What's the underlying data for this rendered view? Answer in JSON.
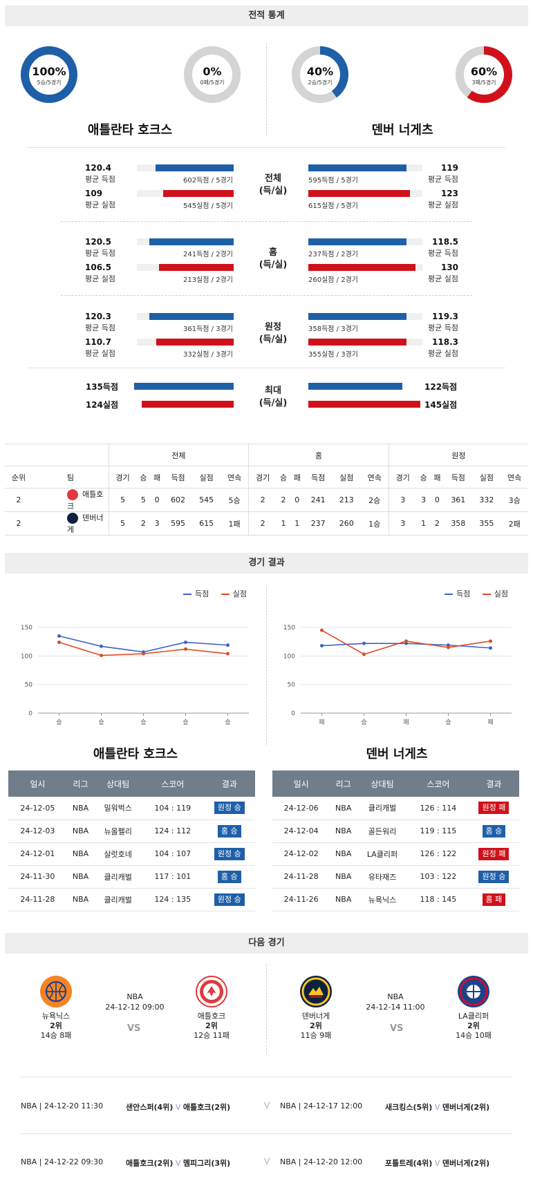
{
  "sections": {
    "stats": "전적 통계",
    "results": "경기 결과",
    "next": "다음 경기"
  },
  "donuts": [
    {
      "pct": "100%",
      "sub": "5승/5경기",
      "fill": 1.0,
      "color": "#1f5fa8"
    },
    {
      "pct": "0%",
      "sub": "0패/5경기",
      "fill": 0.0,
      "color": "#d0111b"
    },
    {
      "pct": "40%",
      "sub": "2승/5경기",
      "fill": 0.4,
      "color": "#1f5fa8"
    },
    {
      "pct": "60%",
      "sub": "3패/5경기",
      "fill": 0.6,
      "color": "#d0111b"
    }
  ],
  "teams": {
    "home": "애틀란타 호크스",
    "away": "덴버 너게츠"
  },
  "compare": [
    {
      "mid": [
        "전체",
        "(득/실)"
      ],
      "left": [
        {
          "num": "120.4",
          "label": "평균 득점",
          "cap": "602득점 / 5경기",
          "ratio": 0.81,
          "color": "blue"
        },
        {
          "num": "109",
          "label": "평균 실점",
          "cap": "545실점 / 5경기",
          "ratio": 0.73,
          "color": "red"
        }
      ],
      "right": [
        {
          "num": "119",
          "label": "평균 득점",
          "cap": "595득점 / 5경기",
          "ratio": 0.86,
          "color": "blue"
        },
        {
          "num": "123",
          "label": "평균 실점",
          "cap": "615실점 / 5경기",
          "ratio": 0.89,
          "color": "red"
        }
      ]
    },
    {
      "mid": [
        "홈",
        "(득/실)"
      ],
      "left": [
        {
          "num": "120.5",
          "label": "평균 득점",
          "cap": "241득점 / 2경기",
          "ratio": 0.87,
          "color": "blue"
        },
        {
          "num": "106.5",
          "label": "평균 실점",
          "cap": "213실점 / 2경기",
          "ratio": 0.77,
          "color": "red"
        }
      ],
      "right": [
        {
          "num": "118.5",
          "label": "평균 득점",
          "cap": "237득점 / 2경기",
          "ratio": 0.86,
          "color": "blue"
        },
        {
          "num": "130",
          "label": "평균 실점",
          "cap": "260실점 / 2경기",
          "ratio": 0.94,
          "color": "red"
        }
      ]
    },
    {
      "mid": [
        "원정",
        "(득/실)"
      ],
      "left": [
        {
          "num": "120.3",
          "label": "평균 득점",
          "cap": "361득점 / 3경기",
          "ratio": 0.87,
          "color": "blue"
        },
        {
          "num": "110.7",
          "label": "평균 실점",
          "cap": "332실점 / 3경기",
          "ratio": 0.8,
          "color": "red"
        }
      ],
      "right": [
        {
          "num": "119.3",
          "label": "평균 득점",
          "cap": "358득점 / 3경기",
          "ratio": 0.86,
          "color": "blue"
        },
        {
          "num": "118.3",
          "label": "평균 실점",
          "cap": "355실점 / 3경기",
          "ratio": 0.86,
          "color": "red"
        }
      ]
    }
  ],
  "maxrow": {
    "mid": [
      "최대",
      "(득/실)"
    ],
    "left": [
      {
        "num": "135득점",
        "ratio": 0.93,
        "color": "blue"
      },
      {
        "num": "124실점",
        "ratio": 0.86,
        "color": "red"
      }
    ],
    "right": [
      {
        "num": "122득점",
        "ratio": 0.84,
        "color": "blue"
      },
      {
        "num": "145실점",
        "ratio": 1.0,
        "color": "red"
      }
    ]
  },
  "standings": {
    "groups": [
      "전체",
      "홈",
      "원정"
    ],
    "cols_fixed": [
      "순위",
      "팀"
    ],
    "cols": [
      "경기",
      "승",
      "패",
      "득점",
      "실점",
      "연속"
    ],
    "rows": [
      {
        "rank": "2",
        "team": "애틀호크",
        "logo_color": "#e03a3e",
        "total": [
          "5",
          "5",
          "0",
          "602",
          "545",
          "5승"
        ],
        "home": [
          "2",
          "2",
          "0",
          "241",
          "213",
          "2승"
        ],
        "away": [
          "3",
          "3",
          "0",
          "361",
          "332",
          "3승"
        ]
      },
      {
        "rank": "2",
        "team": "덴버너게",
        "logo_color": "#0e2240",
        "total": [
          "5",
          "2",
          "3",
          "595",
          "615",
          "1패"
        ],
        "home": [
          "2",
          "1",
          "1",
          "237",
          "260",
          "1승"
        ],
        "away": [
          "3",
          "1",
          "2",
          "358",
          "355",
          "2패"
        ]
      }
    ]
  },
  "legend": {
    "scored": "득점",
    "allowed": "실점"
  },
  "chart_data": [
    {
      "type": "line",
      "categories": [
        "승",
        "승",
        "승",
        "승",
        "승"
      ],
      "series": [
        {
          "name": "득점",
          "values": [
            135,
            117,
            107,
            124,
            119
          ],
          "color": "#3a62c9"
        },
        {
          "name": "실점",
          "values": [
            124,
            101,
            104,
            112,
            104
          ],
          "color": "#dd4b25"
        }
      ],
      "ylim": [
        0,
        150
      ],
      "yticks": [
        0,
        50,
        100,
        150
      ],
      "legend": "top-right",
      "grid": true
    },
    {
      "type": "line",
      "categories": [
        "패",
        "승",
        "패",
        "승",
        "패"
      ],
      "series": [
        {
          "name": "득점",
          "values": [
            118,
            122,
            122,
            119,
            114
          ],
          "color": "#3a62c9"
        },
        {
          "name": "실점",
          "values": [
            145,
            103,
            126,
            115,
            126
          ],
          "color": "#dd4b25"
        }
      ],
      "ylim": [
        0,
        150
      ],
      "yticks": [
        0,
        50,
        100,
        150
      ],
      "legend": "top-right",
      "grid": true
    }
  ],
  "results_tables": {
    "headers": [
      "일시",
      "리그",
      "상대팀",
      "스코어",
      "결과"
    ],
    "left": [
      {
        "date": "24-12-05",
        "league": "NBA",
        "opp": "밀워벅스",
        "score": "104 : 119",
        "result": "원정 승",
        "color": "blue"
      },
      {
        "date": "24-12-03",
        "league": "NBA",
        "opp": "뉴올펠리",
        "score": "124 : 112",
        "result": "홈 승",
        "color": "blue"
      },
      {
        "date": "24-12-01",
        "league": "NBA",
        "opp": "살럿호네",
        "score": "104 : 107",
        "result": "원정 승",
        "color": "blue"
      },
      {
        "date": "24-11-30",
        "league": "NBA",
        "opp": "클리캐벌",
        "score": "117 : 101",
        "result": "홈 승",
        "color": "blue"
      },
      {
        "date": "24-11-28",
        "league": "NBA",
        "opp": "클리캐벌",
        "score": "124 : 135",
        "result": "원정 승",
        "color": "blue"
      }
    ],
    "right": [
      {
        "date": "24-12-06",
        "league": "NBA",
        "opp": "클리캐벌",
        "score": "126 : 114",
        "result": "원정 패",
        "color": "red"
      },
      {
        "date": "24-12-04",
        "league": "NBA",
        "opp": "골든워리",
        "score": "119 : 115",
        "result": "홈 승",
        "color": "blue"
      },
      {
        "date": "24-12-02",
        "league": "NBA",
        "opp": "LA클리퍼",
        "score": "126 : 122",
        "result": "원정 패",
        "color": "red"
      },
      {
        "date": "24-11-28",
        "league": "NBA",
        "opp": "유타재즈",
        "score": "103 : 122",
        "result": "원정 승",
        "color": "blue"
      },
      {
        "date": "24-11-26",
        "league": "NBA",
        "opp": "뉴욕닉스",
        "score": "118 : 145",
        "result": "홈 패",
        "color": "red"
      }
    ]
  },
  "next_games": [
    {
      "info": {
        "league": "NBA",
        "datetime": "24-12-12 09:00"
      },
      "vs": "VS",
      "left": {
        "name": "뉴욕닉스",
        "rank": "2위",
        "record": "14승 8패",
        "logo": "#f58426"
      },
      "right": {
        "name": "애틀호크",
        "rank": "2위",
        "record": "12승 11패",
        "logo": "#e03a3e"
      }
    },
    {
      "info": {
        "league": "NBA",
        "datetime": "24-12-14 11:00"
      },
      "vs": "VS",
      "left": {
        "name": "덴버너게",
        "rank": "2위",
        "record": "11승 9패",
        "logo": "#0e2240"
      },
      "right": {
        "name": "LA클리퍼",
        "rank": "2위",
        "record": "14승 10패",
        "logo": "#1d428a"
      }
    }
  ],
  "schedule": [
    {
      "left": {
        "info": "NBA | 24-12-20 11:30",
        "teamA": "샌안스퍼(4위)",
        "mark": "V",
        "teamB": "애틀호크(2위)"
      },
      "right": {
        "info": "NBA | 24-12-17 12:00",
        "teamA": "새크킹스(5위)",
        "mark": "V",
        "teamB": "덴버너게(2위)"
      }
    },
    {
      "left": {
        "info": "NBA | 24-12-22 09:30",
        "teamA": "애틀호크(2위)",
        "mark": "V",
        "teamB": "멤피그리(3위)"
      },
      "right": {
        "info": "NBA | 24-12-20 12:00",
        "teamA": "포틀트레(4위)",
        "mark": "V",
        "teamB": "덴버너게(2위)"
      }
    }
  ]
}
